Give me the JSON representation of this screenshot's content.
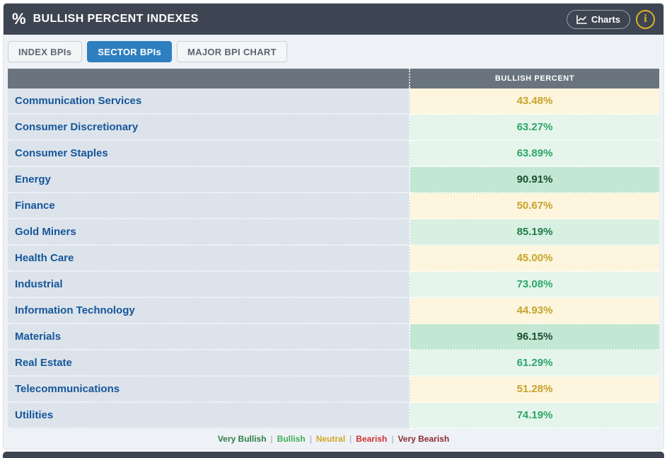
{
  "header": {
    "percent_icon": "%",
    "title": "BULLISH PERCENT INDEXES",
    "charts_button_label": "Charts",
    "info_icon": "i"
  },
  "tabs": [
    {
      "label": "INDEX BPIs",
      "active": false
    },
    {
      "label": "SECTOR BPIs",
      "active": true
    },
    {
      "label": "MAJOR BPI CHART",
      "active": false
    }
  ],
  "table": {
    "value_column_header": "BULLISH PERCENT",
    "rows": [
      {
        "sector": "Communication Services",
        "value": "43.48%",
        "status": "neutral"
      },
      {
        "sector": "Consumer Discretionary",
        "value": "63.27%",
        "status": "bullish"
      },
      {
        "sector": "Consumer Staples",
        "value": "63.89%",
        "status": "bullish"
      },
      {
        "sector": "Energy",
        "value": "90.91%",
        "status": "very_bullish"
      },
      {
        "sector": "Finance",
        "value": "50.67%",
        "status": "neutral"
      },
      {
        "sector": "Gold Miners",
        "value": "85.19%",
        "status": "bullish_strong"
      },
      {
        "sector": "Health Care",
        "value": "45.00%",
        "status": "neutral"
      },
      {
        "sector": "Industrial",
        "value": "73.08%",
        "status": "bullish"
      },
      {
        "sector": "Information Technology",
        "value": "44.93%",
        "status": "neutral"
      },
      {
        "sector": "Materials",
        "value": "96.15%",
        "status": "very_bullish"
      },
      {
        "sector": "Real Estate",
        "value": "61.29%",
        "status": "bullish"
      },
      {
        "sector": "Telecommunications",
        "value": "51.28%",
        "status": "neutral"
      },
      {
        "sector": "Utilities",
        "value": "74.19%",
        "status": "bullish"
      }
    ]
  },
  "status_colors": {
    "neutral": {
      "bg": "#fdf5dd",
      "text": "#c5a42a"
    },
    "bullish": {
      "bg": "#e5f5ec",
      "text": "#2ca667"
    },
    "bullish_strong": {
      "bg": "#d8f0e2",
      "text": "#1f7c48"
    },
    "very_bullish": {
      "bg": "#c2e7d2",
      "text": "#1b4f31"
    }
  },
  "legend": [
    {
      "label": "Very Bullish",
      "color": "#2e7d46"
    },
    {
      "label": "Bullish",
      "color": "#3fae5f"
    },
    {
      "label": "Neutral",
      "color": "#d1a827"
    },
    {
      "label": "Bearish",
      "color": "#cf3333"
    },
    {
      "label": "Very Bearish",
      "color": "#8c2b34"
    }
  ],
  "theme": {
    "header_bg": "#3e4552",
    "panel_bg": "#eef1f5",
    "table_header_bg": "#69747f",
    "sector_cell_bg": "#dce3eb",
    "sector_text": "#16569a",
    "active_tab_bg": "#2e7fc0",
    "info_accent": "#e2b123"
  }
}
